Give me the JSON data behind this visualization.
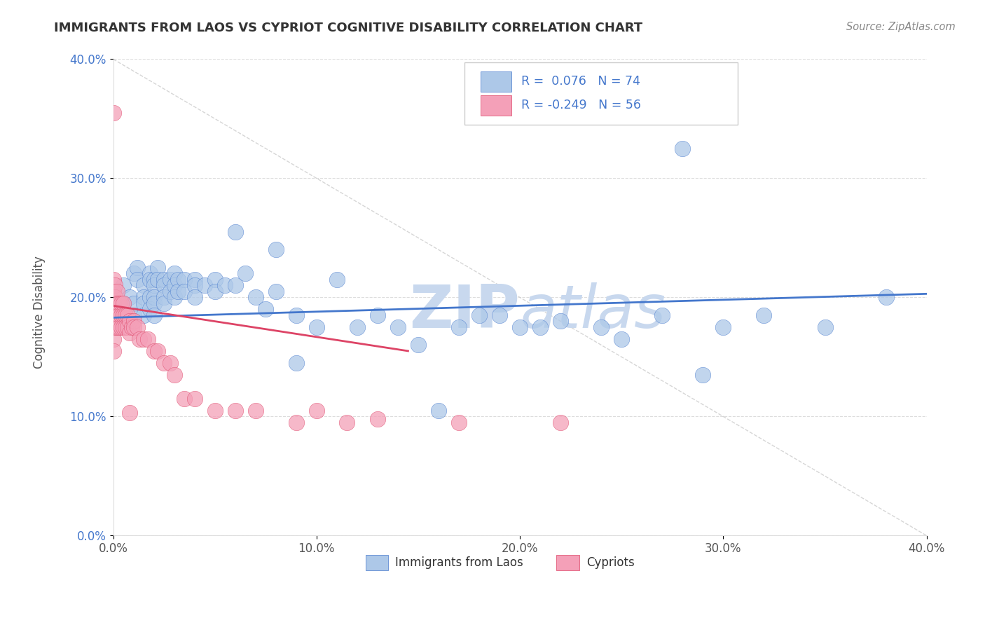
{
  "title": "IMMIGRANTS FROM LAOS VS CYPRIOT COGNITIVE DISABILITY CORRELATION CHART",
  "source": "Source: ZipAtlas.com",
  "x_min": 0.0,
  "x_max": 0.4,
  "y_min": 0.0,
  "y_max": 0.4,
  "legend_label1": "Immigrants from Laos",
  "legend_label2": "Cypriots",
  "R1": 0.076,
  "N1": 74,
  "R2": -0.249,
  "N2": 56,
  "color_blue": "#adc8e8",
  "color_pink": "#f4a0b8",
  "color_blue_line": "#4477cc",
  "color_pink_line": "#dd4466",
  "color_diag": "#cccccc",
  "watermark_color": "#c8d8ee",
  "blue_line_x": [
    0.0,
    0.4
  ],
  "blue_line_y": [
    0.183,
    0.203
  ],
  "pink_line_x": [
    0.0,
    0.145
  ],
  "pink_line_y": [
    0.193,
    0.155
  ],
  "blue_scatter_x": [
    0.005,
    0.005,
    0.008,
    0.01,
    0.01,
    0.01,
    0.012,
    0.012,
    0.015,
    0.015,
    0.015,
    0.015,
    0.018,
    0.018,
    0.018,
    0.018,
    0.02,
    0.02,
    0.02,
    0.02,
    0.02,
    0.022,
    0.022,
    0.025,
    0.025,
    0.025,
    0.025,
    0.028,
    0.028,
    0.03,
    0.03,
    0.03,
    0.032,
    0.032,
    0.035,
    0.035,
    0.04,
    0.04,
    0.04,
    0.045,
    0.05,
    0.05,
    0.055,
    0.06,
    0.065,
    0.07,
    0.075,
    0.08,
    0.09,
    0.1,
    0.11,
    0.12,
    0.13,
    0.14,
    0.15,
    0.17,
    0.19,
    0.2,
    0.22,
    0.24,
    0.27,
    0.28,
    0.3,
    0.32,
    0.35,
    0.38,
    0.08,
    0.06,
    0.09,
    0.16,
    0.18,
    0.21,
    0.25,
    0.29
  ],
  "blue_scatter_y": [
    0.195,
    0.21,
    0.2,
    0.22,
    0.195,
    0.185,
    0.225,
    0.215,
    0.21,
    0.2,
    0.195,
    0.185,
    0.22,
    0.215,
    0.2,
    0.19,
    0.215,
    0.21,
    0.2,
    0.195,
    0.185,
    0.225,
    0.215,
    0.215,
    0.21,
    0.2,
    0.195,
    0.215,
    0.205,
    0.22,
    0.21,
    0.2,
    0.215,
    0.205,
    0.215,
    0.205,
    0.215,
    0.21,
    0.2,
    0.21,
    0.215,
    0.205,
    0.21,
    0.21,
    0.22,
    0.2,
    0.19,
    0.205,
    0.185,
    0.175,
    0.215,
    0.175,
    0.185,
    0.175,
    0.16,
    0.175,
    0.185,
    0.175,
    0.18,
    0.175,
    0.185,
    0.325,
    0.175,
    0.185,
    0.175,
    0.2,
    0.24,
    0.255,
    0.145,
    0.105,
    0.185,
    0.175,
    0.165,
    0.135
  ],
  "pink_scatter_x": [
    0.0,
    0.0,
    0.0,
    0.0,
    0.0,
    0.0,
    0.0,
    0.0,
    0.001,
    0.001,
    0.001,
    0.001,
    0.001,
    0.002,
    0.002,
    0.002,
    0.002,
    0.003,
    0.003,
    0.003,
    0.004,
    0.004,
    0.004,
    0.005,
    0.005,
    0.005,
    0.006,
    0.006,
    0.007,
    0.007,
    0.008,
    0.008,
    0.009,
    0.01,
    0.01,
    0.012,
    0.013,
    0.015,
    0.017,
    0.02,
    0.022,
    0.025,
    0.028,
    0.03,
    0.035,
    0.04,
    0.05,
    0.06,
    0.07,
    0.09,
    0.1,
    0.115,
    0.13,
    0.17,
    0.22,
    0.008
  ],
  "pink_scatter_y": [
    0.355,
    0.215,
    0.205,
    0.195,
    0.185,
    0.175,
    0.165,
    0.155,
    0.21,
    0.2,
    0.195,
    0.185,
    0.175,
    0.205,
    0.195,
    0.185,
    0.175,
    0.195,
    0.185,
    0.175,
    0.195,
    0.185,
    0.175,
    0.195,
    0.185,
    0.175,
    0.185,
    0.175,
    0.185,
    0.175,
    0.18,
    0.17,
    0.175,
    0.18,
    0.175,
    0.175,
    0.165,
    0.165,
    0.165,
    0.155,
    0.155,
    0.145,
    0.145,
    0.135,
    0.115,
    0.115,
    0.105,
    0.105,
    0.105,
    0.095,
    0.105,
    0.095,
    0.098,
    0.095,
    0.095,
    0.103
  ]
}
